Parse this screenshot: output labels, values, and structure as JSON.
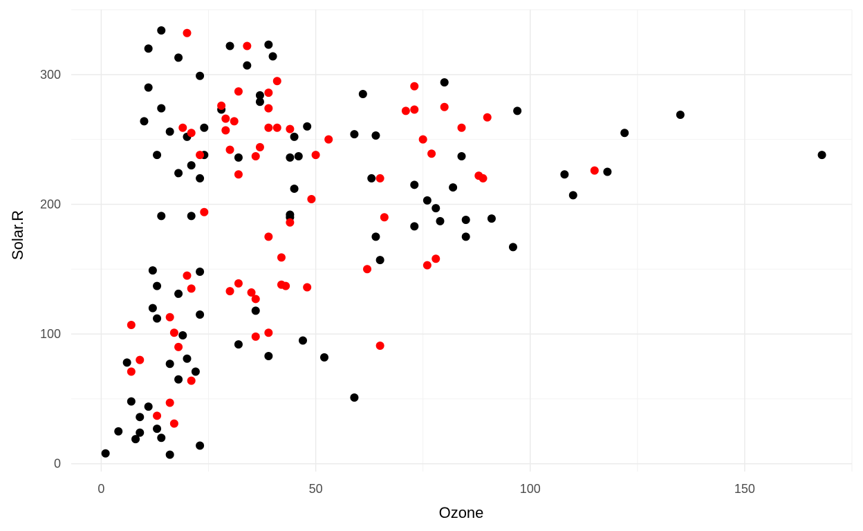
{
  "chart_data": {
    "type": "scatter",
    "xlabel": "Ozone",
    "ylabel": "Solar.R",
    "xlim": [
      -7,
      175
    ],
    "ylim": [
      -6,
      350
    ],
    "x_ticks": [
      0,
      50,
      100,
      150
    ],
    "y_ticks": [
      0,
      100,
      200,
      300
    ],
    "grid": true,
    "series": [
      {
        "color": "#000000",
        "points": [
          [
            1,
            8
          ],
          [
            4,
            25
          ],
          [
            6,
            78
          ],
          [
            7,
            48
          ],
          [
            8,
            19
          ],
          [
            9,
            24
          ],
          [
            9,
            36
          ],
          [
            10,
            264
          ],
          [
            11,
            320
          ],
          [
            11,
            290
          ],
          [
            11,
            44
          ],
          [
            12,
            149
          ],
          [
            12,
            120
          ],
          [
            13,
            238
          ],
          [
            13,
            137
          ],
          [
            13,
            112
          ],
          [
            13,
            27
          ],
          [
            14,
            334
          ],
          [
            14,
            274
          ],
          [
            14,
            191
          ],
          [
            14,
            20
          ],
          [
            16,
            256
          ],
          [
            16,
            77
          ],
          [
            16,
            7
          ],
          [
            18,
            313
          ],
          [
            18,
            224
          ],
          [
            18,
            131
          ],
          [
            18,
            65
          ],
          [
            19,
            99
          ],
          [
            20,
            252
          ],
          [
            20,
            81
          ],
          [
            21,
            230
          ],
          [
            21,
            191
          ],
          [
            22,
            71
          ],
          [
            23,
            299
          ],
          [
            23,
            220
          ],
          [
            23,
            148
          ],
          [
            23,
            115
          ],
          [
            23,
            14
          ],
          [
            24,
            259
          ],
          [
            24,
            238
          ],
          [
            28,
            273
          ],
          [
            30,
            322
          ],
          [
            32,
            236
          ],
          [
            32,
            92
          ],
          [
            34,
            307
          ],
          [
            37,
            284
          ],
          [
            37,
            279
          ],
          [
            39,
            323
          ],
          [
            39,
            83
          ],
          [
            40,
            314
          ],
          [
            44,
            236
          ],
          [
            44,
            192
          ],
          [
            44,
            190
          ],
          [
            45,
            252
          ],
          [
            45,
            212
          ],
          [
            46,
            237
          ],
          [
            47,
            95
          ],
          [
            48,
            260
          ],
          [
            52,
            82
          ],
          [
            59,
            254
          ],
          [
            59,
            51
          ],
          [
            61,
            285
          ],
          [
            63,
            220
          ],
          [
            64,
            253
          ],
          [
            64,
            175
          ],
          [
            65,
            157
          ],
          [
            73,
            215
          ],
          [
            73,
            183
          ],
          [
            76,
            203
          ],
          [
            78,
            197
          ],
          [
            79,
            187
          ],
          [
            80,
            294
          ],
          [
            82,
            213
          ],
          [
            84,
            237
          ],
          [
            85,
            188
          ],
          [
            85,
            175
          ],
          [
            91,
            189
          ],
          [
            96,
            167
          ],
          [
            97,
            272
          ],
          [
            108,
            223
          ],
          [
            110,
            207
          ],
          [
            118,
            225
          ],
          [
            122,
            255
          ],
          [
            135,
            269
          ],
          [
            168,
            238
          ],
          [
            36,
            118
          ]
        ]
      },
      {
        "color": "#ff0000",
        "points": [
          [
            7,
            107
          ],
          [
            7,
            71
          ],
          [
            9,
            80
          ],
          [
            13,
            37
          ],
          [
            16,
            113
          ],
          [
            16,
            47
          ],
          [
            17,
            101
          ],
          [
            17,
            31
          ],
          [
            18,
            90
          ],
          [
            19,
            259
          ],
          [
            20,
            332
          ],
          [
            20,
            145
          ],
          [
            21,
            255
          ],
          [
            21,
            135
          ],
          [
            21,
            64
          ],
          [
            23,
            238
          ],
          [
            24,
            194
          ],
          [
            28,
            276
          ],
          [
            29,
            257
          ],
          [
            29,
            266
          ],
          [
            30,
            242
          ],
          [
            30,
            133
          ],
          [
            31,
            264
          ],
          [
            32,
            223
          ],
          [
            32,
            139
          ],
          [
            32,
            287
          ],
          [
            34,
            322
          ],
          [
            35,
            132
          ],
          [
            36,
            127
          ],
          [
            36,
            237
          ],
          [
            36,
            98
          ],
          [
            37,
            244
          ],
          [
            39,
            286
          ],
          [
            39,
            274
          ],
          [
            39,
            259
          ],
          [
            39,
            175
          ],
          [
            39,
            101
          ],
          [
            41,
            259
          ],
          [
            41,
            295
          ],
          [
            42,
            159
          ],
          [
            42,
            138
          ],
          [
            43,
            137
          ],
          [
            44,
            258
          ],
          [
            44,
            186
          ],
          [
            48,
            136
          ],
          [
            49,
            204
          ],
          [
            50,
            238
          ],
          [
            53,
            250
          ],
          [
            62,
            150
          ],
          [
            65,
            220
          ],
          [
            65,
            91
          ],
          [
            66,
            190
          ],
          [
            71,
            272
          ],
          [
            73,
            291
          ],
          [
            73,
            273
          ],
          [
            75,
            250
          ],
          [
            76,
            153
          ],
          [
            77,
            239
          ],
          [
            78,
            158
          ],
          [
            80,
            275
          ],
          [
            84,
            259
          ],
          [
            88,
            222
          ],
          [
            89,
            220
          ],
          [
            90,
            267
          ],
          [
            115,
            226
          ]
        ]
      }
    ]
  }
}
